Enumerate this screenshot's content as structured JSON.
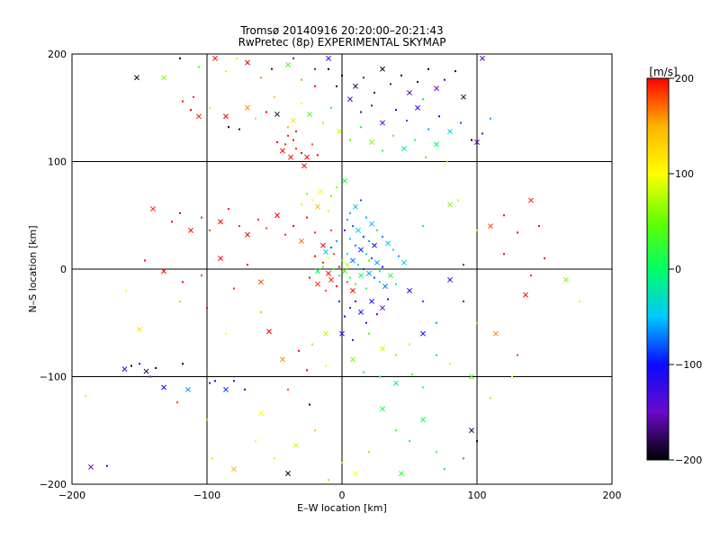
{
  "chart_data": {
    "type": "scatter",
    "title": "Tromsø 20140916 20:20:00–20:21:43",
    "subtitle": "RwPretec (8p) EXPERIMENTAL SKYMAP",
    "xlabel": "E–W location [km]",
    "ylabel": "N–S location [km]",
    "xlim": [
      -200,
      200
    ],
    "ylim": [
      -200,
      200
    ],
    "xticks": [
      -200,
      -100,
      0,
      100,
      200
    ],
    "yticks": [
      -200,
      -100,
      0,
      100,
      200
    ],
    "grid": true,
    "markers": [
      "dot",
      "x"
    ],
    "colorbar": {
      "label": "[m/s]",
      "range": [
        -200,
        200
      ],
      "ticks": [
        200,
        100,
        0,
        -100,
        -200
      ],
      "colormap": [
        "#000000",
        "#6a0ac8",
        "#0a0aff",
        "#00c8ff",
        "#00ff64",
        "#64ff00",
        "#ffff00",
        "#ffb400",
        "#ff0000"
      ]
    },
    "points": [
      [
        -186,
        -184,
        -150
      ],
      [
        -190,
        -118,
        120
      ],
      [
        -174,
        -183,
        -100
      ],
      [
        -161,
        -93,
        -120
      ],
      [
        -156,
        -90,
        -200
      ],
      [
        -150,
        -88,
        -110
      ],
      [
        -145,
        -95,
        -180
      ],
      [
        -142,
        -100,
        -150
      ],
      [
        -138,
        -92,
        -190
      ],
      [
        -132,
        -110,
        -100
      ],
      [
        -122,
        -124,
        180
      ],
      [
        -118,
        -88,
        -200
      ],
      [
        -114,
        -112,
        -60
      ],
      [
        -98,
        -106,
        -140
      ],
      [
        -94,
        -104,
        -100
      ],
      [
        -86,
        -112,
        -90
      ],
      [
        -80,
        -104,
        -110
      ],
      [
        -72,
        -112,
        -100
      ],
      [
        -152,
        178,
        -200
      ],
      [
        -118,
        156,
        200
      ],
      [
        -112,
        148,
        200
      ],
      [
        -106,
        142,
        190
      ],
      [
        -110,
        160,
        190
      ],
      [
        -98,
        150,
        120
      ],
      [
        -86,
        142,
        200
      ],
      [
        -84,
        132,
        -200
      ],
      [
        -76,
        130,
        -180
      ],
      [
        -70,
        150,
        160
      ],
      [
        -64,
        140,
        140
      ],
      [
        -56,
        146,
        200
      ],
      [
        -48,
        144,
        -180
      ],
      [
        -40,
        132,
        150
      ],
      [
        -34,
        128,
        200
      ],
      [
        -132,
        178,
        60
      ],
      [
        -120,
        196,
        -200
      ],
      [
        -106,
        188,
        40
      ],
      [
        -94,
        196,
        200
      ],
      [
        -86,
        184,
        80
      ],
      [
        -78,
        196,
        120
      ],
      [
        -70,
        192,
        200
      ],
      [
        -60,
        178,
        160
      ],
      [
        -52,
        186,
        -180
      ],
      [
        -40,
        190,
        40
      ],
      [
        -30,
        176,
        160
      ],
      [
        -20,
        170,
        200
      ],
      [
        -44,
        110,
        200
      ],
      [
        -48,
        118,
        200
      ],
      [
        -42,
        116,
        190
      ],
      [
        -38,
        104,
        200
      ],
      [
        -34,
        112,
        190
      ],
      [
        -30,
        108,
        200
      ],
      [
        -26,
        104,
        200
      ],
      [
        -22,
        116,
        180
      ],
      [
        -18,
        106,
        200
      ],
      [
        -28,
        96,
        200
      ],
      [
        -36,
        120,
        200
      ],
      [
        -40,
        124,
        190
      ],
      [
        -140,
        56,
        190
      ],
      [
        -126,
        44,
        200
      ],
      [
        -120,
        52,
        200
      ],
      [
        -112,
        36,
        200
      ],
      [
        -104,
        48,
        190
      ],
      [
        -98,
        36,
        180
      ],
      [
        -90,
        44,
        200
      ],
      [
        -84,
        56,
        200
      ],
      [
        -76,
        40,
        190
      ],
      [
        -70,
        32,
        200
      ],
      [
        -62,
        46,
        200
      ],
      [
        -56,
        38,
        180
      ],
      [
        -48,
        50,
        200
      ],
      [
        -42,
        32,
        190
      ],
      [
        -36,
        40,
        200
      ],
      [
        -30,
        26,
        170
      ],
      [
        -26,
        48,
        200
      ],
      [
        -20,
        34,
        190
      ],
      [
        -14,
        22,
        200
      ],
      [
        -8,
        36,
        180
      ],
      [
        -146,
        8,
        200
      ],
      [
        -132,
        -2,
        200
      ],
      [
        -118,
        -12,
        200
      ],
      [
        -104,
        -6,
        180
      ],
      [
        -90,
        10,
        200
      ],
      [
        -80,
        -18,
        190
      ],
      [
        -70,
        4,
        200
      ],
      [
        -60,
        -12,
        180
      ],
      [
        -20,
        12,
        200
      ],
      [
        -14,
        6,
        190
      ],
      [
        -10,
        -4,
        200
      ],
      [
        -6,
        14,
        180
      ],
      [
        -2,
        2,
        200
      ],
      [
        -18,
        -14,
        190
      ],
      [
        -24,
        -8,
        200
      ],
      [
        -12,
        -20,
        180
      ],
      [
        -8,
        -10,
        190
      ],
      [
        -4,
        -16,
        200
      ],
      [
        4,
        -12,
        180
      ],
      [
        8,
        -20,
        200
      ],
      [
        -30,
        60,
        120
      ],
      [
        -22,
        64,
        100
      ],
      [
        -18,
        58,
        140
      ],
      [
        -10,
        54,
        80
      ],
      [
        -26,
        70,
        60
      ],
      [
        -16,
        72,
        100
      ],
      [
        -8,
        68,
        40
      ],
      [
        -4,
        76,
        60
      ],
      [
        2,
        82,
        20
      ],
      [
        4,
        46,
        -60
      ],
      [
        8,
        40,
        -80
      ],
      [
        12,
        36,
        -40
      ],
      [
        16,
        30,
        -90
      ],
      [
        20,
        26,
        -60
      ],
      [
        24,
        22,
        -100
      ],
      [
        6,
        28,
        -50
      ],
      [
        10,
        22,
        -70
      ],
      [
        14,
        18,
        -90
      ],
      [
        18,
        14,
        -40
      ],
      [
        22,
        10,
        -80
      ],
      [
        26,
        6,
        -60
      ],
      [
        30,
        2,
        -100
      ],
      [
        4,
        14,
        -30
      ],
      [
        8,
        8,
        -70
      ],
      [
        12,
        4,
        -50
      ],
      [
        16,
        0,
        -90
      ],
      [
        20,
        -4,
        -60
      ],
      [
        24,
        -8,
        -80
      ],
      [
        28,
        -12,
        -40
      ],
      [
        32,
        -16,
        -70
      ],
      [
        -4,
        26,
        -60
      ],
      [
        -8,
        20,
        -80
      ],
      [
        -12,
        16,
        -40
      ],
      [
        2,
        36,
        -90
      ],
      [
        6,
        52,
        -60
      ],
      [
        10,
        58,
        -40
      ],
      [
        14,
        64,
        -80
      ],
      [
        18,
        48,
        -60
      ],
      [
        22,
        42,
        -50
      ],
      [
        26,
        36,
        -30
      ],
      [
        30,
        30,
        -70
      ],
      [
        34,
        24,
        -50
      ],
      [
        38,
        18,
        -20
      ],
      [
        42,
        12,
        -60
      ],
      [
        46,
        6,
        -40
      ],
      [
        -6,
        0,
        20
      ],
      [
        -2,
        -6,
        0
      ],
      [
        2,
        -2,
        40
      ],
      [
        6,
        -8,
        10
      ],
      [
        10,
        -14,
        30
      ],
      [
        14,
        -6,
        0
      ],
      [
        18,
        -18,
        20
      ],
      [
        0,
        8,
        60
      ],
      [
        4,
        4,
        80
      ],
      [
        -10,
        10,
        100
      ],
      [
        -14,
        2,
        40
      ],
      [
        -18,
        -2,
        0
      ],
      [
        20,
        8,
        50
      ],
      [
        28,
        -2,
        0
      ],
      [
        36,
        -6,
        20
      ],
      [
        40,
        -14,
        -10
      ],
      [
        10,
        -30,
        -120
      ],
      [
        14,
        -40,
        -100
      ],
      [
        18,
        -50,
        -140
      ],
      [
        6,
        -36,
        -90
      ],
      [
        22,
        -30,
        -110
      ],
      [
        26,
        -42,
        -130
      ],
      [
        2,
        -44,
        -100
      ],
      [
        30,
        -36,
        -150
      ],
      [
        34,
        -28,
        -120
      ],
      [
        -2,
        -30,
        -90
      ],
      [
        0,
        -60,
        -110
      ],
      [
        8,
        -66,
        -130
      ],
      [
        20,
        -60,
        40
      ],
      [
        30,
        -74,
        80
      ],
      [
        40,
        -80,
        60
      ],
      [
        50,
        -70,
        120
      ],
      [
        -12,
        -60,
        80
      ],
      [
        -22,
        -70,
        140
      ],
      [
        -32,
        -76,
        200
      ],
      [
        -44,
        -84,
        160
      ],
      [
        -26,
        -94,
        200
      ],
      [
        -12,
        -90,
        100
      ],
      [
        8,
        -84,
        60
      ],
      [
        16,
        -96,
        20
      ],
      [
        28,
        -100,
        0
      ],
      [
        40,
        -106,
        -20
      ],
      [
        52,
        -98,
        40
      ],
      [
        60,
        -110,
        20
      ],
      [
        30,
        -130,
        10
      ],
      [
        40,
        -150,
        20
      ],
      [
        50,
        -160,
        -10
      ],
      [
        60,
        -140,
        0
      ],
      [
        70,
        -170,
        30
      ],
      [
        20,
        -170,
        60
      ],
      [
        10,
        -190,
        100
      ],
      [
        0,
        -180,
        80
      ],
      [
        -10,
        -196,
        60
      ],
      [
        44,
        -190,
        20
      ],
      [
        76,
        -186,
        -40
      ],
      [
        90,
        -176,
        -60
      ],
      [
        96,
        -150,
        -180
      ],
      [
        100,
        -160,
        -200
      ],
      [
        -20,
        -150,
        140
      ],
      [
        -34,
        -164,
        80
      ],
      [
        -50,
        -176,
        120
      ],
      [
        -64,
        -160,
        100
      ],
      [
        -80,
        -186,
        150
      ],
      [
        -96,
        -176,
        80
      ],
      [
        -100,
        -140,
        60
      ],
      [
        -60,
        -134,
        100
      ],
      [
        -40,
        -112,
        180
      ],
      [
        -24,
        -126,
        -200
      ],
      [
        -40,
        -190,
        -200
      ],
      [
        -120,
        -30,
        60
      ],
      [
        -160,
        -20,
        100
      ],
      [
        -150,
        -56,
        120
      ],
      [
        -100,
        -36,
        200
      ],
      [
        -60,
        -40,
        150
      ],
      [
        -54,
        -58,
        200
      ],
      [
        -86,
        -60,
        100
      ],
      [
        60,
        40,
        -20
      ],
      [
        80,
        60,
        60
      ],
      [
        86,
        64,
        80
      ],
      [
        100,
        36,
        120
      ],
      [
        110,
        40,
        180
      ],
      [
        120,
        50,
        200
      ],
      [
        130,
        34,
        200
      ],
      [
        140,
        64,
        190
      ],
      [
        146,
        40,
        200
      ],
      [
        120,
        14,
        200
      ],
      [
        136,
        -24,
        200
      ],
      [
        140,
        -6,
        190
      ],
      [
        150,
        10,
        200
      ],
      [
        166,
        -10,
        60
      ],
      [
        176,
        -30,
        80
      ],
      [
        100,
        -50,
        140
      ],
      [
        114,
        -60,
        160
      ],
      [
        130,
        -80,
        180
      ],
      [
        80,
        -88,
        80
      ],
      [
        96,
        -100,
        40
      ],
      [
        110,
        -120,
        60
      ],
      [
        126,
        -100,
        100
      ],
      [
        50,
        -20,
        -100
      ],
      [
        60,
        -30,
        -80
      ],
      [
        70,
        -50,
        -60
      ],
      [
        80,
        -10,
        -120
      ],
      [
        90,
        -30,
        -90
      ],
      [
        90,
        4,
        -140
      ],
      [
        60,
        -60,
        -100
      ],
      [
        70,
        -80,
        -40
      ],
      [
        0,
        180,
        -200
      ],
      [
        10,
        170,
        -180
      ],
      [
        16,
        178,
        -160
      ],
      [
        24,
        164,
        -180
      ],
      [
        30,
        186,
        -200
      ],
      [
        36,
        172,
        -170
      ],
      [
        44,
        180,
        -190
      ],
      [
        50,
        164,
        -160
      ],
      [
        56,
        174,
        -180
      ],
      [
        64,
        186,
        -200
      ],
      [
        70,
        168,
        -150
      ],
      [
        76,
        176,
        -170
      ],
      [
        84,
        184,
        -190
      ],
      [
        90,
        160,
        -180
      ],
      [
        -10,
        186,
        -200
      ],
      [
        -4,
        170,
        -190
      ],
      [
        6,
        158,
        -140
      ],
      [
        14,
        146,
        -160
      ],
      [
        22,
        152,
        -120
      ],
      [
        30,
        136,
        -140
      ],
      [
        40,
        148,
        -100
      ],
      [
        48,
        138,
        -80
      ],
      [
        56,
        150,
        -120
      ],
      [
        64,
        130,
        -60
      ],
      [
        72,
        142,
        -100
      ],
      [
        80,
        128,
        -40
      ],
      [
        88,
        136,
        -80
      ],
      [
        96,
        120,
        -200
      ],
      [
        100,
        118,
        -160
      ],
      [
        104,
        126,
        -140
      ],
      [
        110,
        140,
        -60
      ],
      [
        -24,
        144,
        40
      ],
      [
        -14,
        136,
        60
      ],
      [
        -8,
        150,
        20
      ],
      [
        -2,
        128,
        80
      ],
      [
        6,
        120,
        40
      ],
      [
        14,
        132,
        0
      ],
      [
        22,
        118,
        60
      ],
      [
        30,
        110,
        20
      ],
      [
        38,
        124,
        40
      ],
      [
        46,
        112,
        -20
      ],
      [
        54,
        120,
        10
      ],
      [
        62,
        104,
        40
      ],
      [
        70,
        116,
        0
      ],
      [
        78,
        100,
        60
      ],
      [
        -30,
        154,
        100
      ],
      [
        -36,
        138,
        120
      ],
      [
        -50,
        160,
        140
      ],
      [
        60,
        158,
        -20
      ],
      [
        104,
        196,
        -160
      ],
      [
        -36,
        196,
        -150
      ],
      [
        -20,
        186,
        -130
      ],
      [
        -10,
        196,
        -110
      ]
    ]
  }
}
